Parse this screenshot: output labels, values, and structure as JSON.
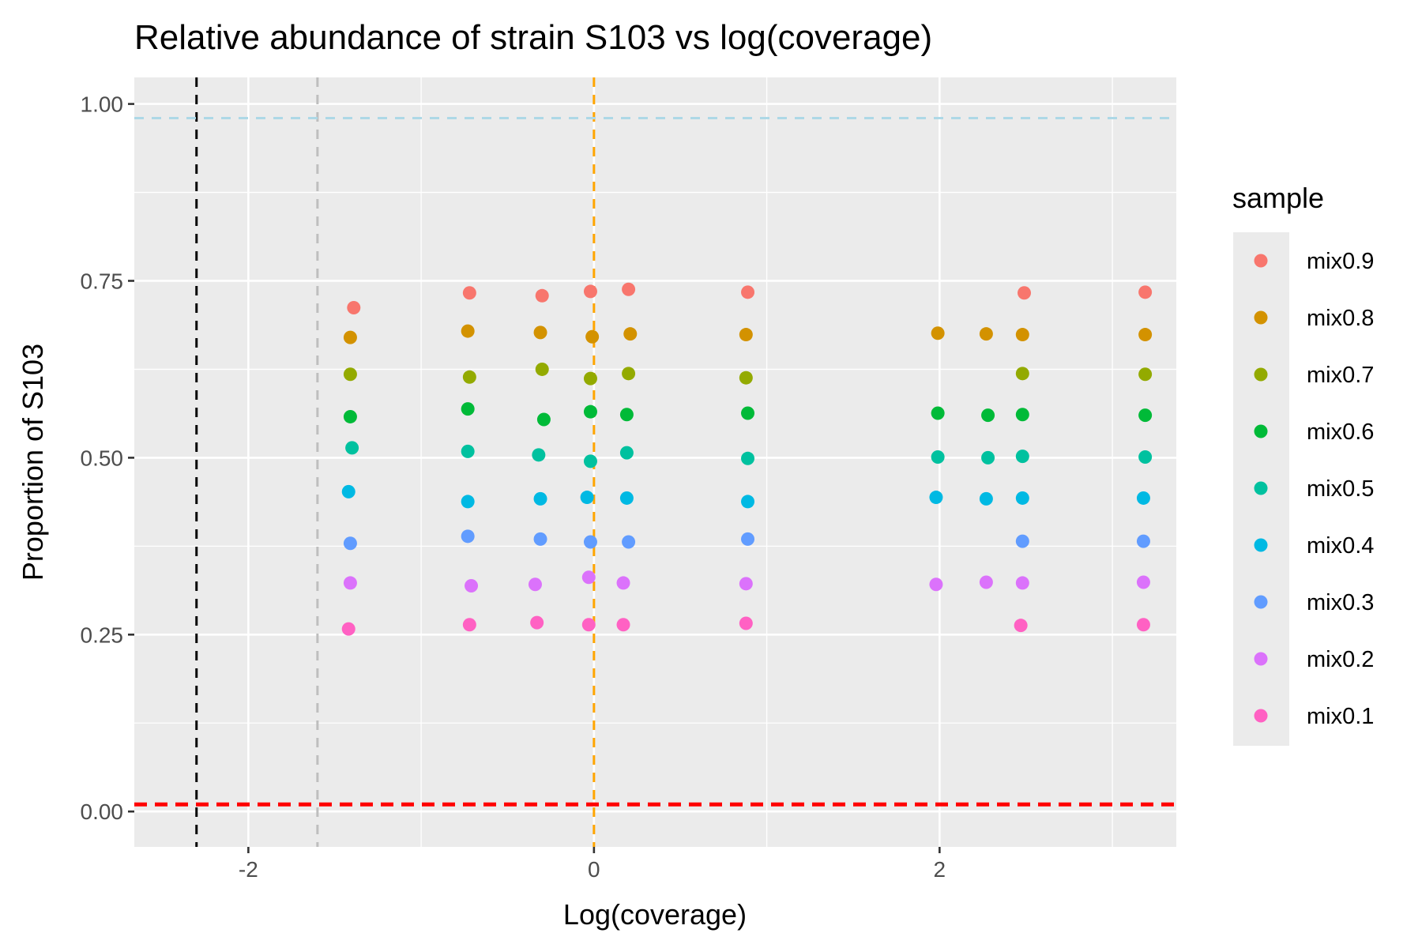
{
  "chart_data": {
    "type": "scatter",
    "title": "Relative abundance of strain S103 vs log(coverage)",
    "xlabel": "Log(coverage)",
    "ylabel": "Proportion of S103",
    "xlim": [
      -2.66,
      3.37
    ],
    "ylim": [
      -0.05,
      1.0375
    ],
    "x_ticks": [
      -2,
      0,
      2
    ],
    "x_tick_labels": [
      "-2",
      "0",
      "2"
    ],
    "y_ticks": [
      0,
      0.25,
      0.5,
      0.75,
      1.0
    ],
    "y_tick_labels": [
      "0.00",
      "0.25",
      "0.50",
      "0.75",
      "1.00"
    ],
    "x_minor_ticks": [
      -1,
      1,
      3
    ],
    "y_minor_ticks": [
      0.125,
      0.375,
      0.625,
      0.875
    ],
    "grid": true,
    "background": "#ebebeb",
    "legend": {
      "title": "sample",
      "position": "right",
      "entries": [
        "mix0.9",
        "mix0.8",
        "mix0.7",
        "mix0.6",
        "mix0.5",
        "mix0.4",
        "mix0.3",
        "mix0.2",
        "mix0.1"
      ]
    },
    "reference_lines": [
      {
        "orientation": "vertical",
        "value": -2.3,
        "color": "#000000",
        "style": "dashed"
      },
      {
        "orientation": "vertical",
        "value": -1.6,
        "color": "#bebebe",
        "style": "dashed"
      },
      {
        "orientation": "vertical",
        "value": 0.0,
        "color": "#ffa500",
        "style": "dashed"
      },
      {
        "orientation": "horizontal",
        "value": 0.98,
        "color": "#add8e6",
        "style": "dashed"
      },
      {
        "orientation": "horizontal",
        "value": 0.01,
        "color": "#ff0000",
        "style": "dashed"
      }
    ],
    "series": [
      {
        "name": "mix0.9",
        "color": "#F8766D",
        "points": [
          [
            -1.39,
            0.712
          ],
          [
            -0.72,
            0.733
          ],
          [
            -0.3,
            0.729
          ],
          [
            -0.02,
            0.735
          ],
          [
            0.2,
            0.738
          ],
          [
            0.89,
            0.734
          ],
          [
            2.49,
            0.733
          ],
          [
            3.19,
            0.734
          ]
        ]
      },
      {
        "name": "mix0.8",
        "color": "#D39200",
        "points": [
          [
            -1.41,
            0.67
          ],
          [
            -0.73,
            0.679
          ],
          [
            -0.31,
            0.677
          ],
          [
            -0.01,
            0.671
          ],
          [
            0.21,
            0.675
          ],
          [
            0.88,
            0.674
          ],
          [
            1.99,
            0.676
          ],
          [
            2.27,
            0.675
          ],
          [
            2.48,
            0.674
          ],
          [
            3.19,
            0.674
          ]
        ]
      },
      {
        "name": "mix0.7",
        "color": "#93AA00",
        "points": [
          [
            -1.41,
            0.618
          ],
          [
            -0.72,
            0.614
          ],
          [
            -0.3,
            0.625
          ],
          [
            -0.02,
            0.612
          ],
          [
            0.2,
            0.619
          ],
          [
            0.88,
            0.613
          ],
          [
            2.48,
            0.619
          ],
          [
            3.19,
            0.618
          ]
        ]
      },
      {
        "name": "mix0.6",
        "color": "#00BA38",
        "points": [
          [
            -1.41,
            0.558
          ],
          [
            -0.73,
            0.569
          ],
          [
            -0.29,
            0.554
          ],
          [
            -0.02,
            0.565
          ],
          [
            0.19,
            0.561
          ],
          [
            0.89,
            0.563
          ],
          [
            1.99,
            0.563
          ],
          [
            2.28,
            0.56
          ],
          [
            2.48,
            0.561
          ],
          [
            3.19,
            0.56
          ]
        ]
      },
      {
        "name": "mix0.5",
        "color": "#00C19F",
        "points": [
          [
            -1.4,
            0.514
          ],
          [
            -0.73,
            0.509
          ],
          [
            -0.32,
            0.504
          ],
          [
            -0.02,
            0.495
          ],
          [
            0.19,
            0.507
          ],
          [
            0.89,
            0.499
          ],
          [
            1.99,
            0.501
          ],
          [
            2.28,
            0.5
          ],
          [
            2.48,
            0.502
          ],
          [
            3.19,
            0.501
          ]
        ]
      },
      {
        "name": "mix0.4",
        "color": "#00B9E3",
        "points": [
          [
            -1.42,
            0.452
          ],
          [
            -0.73,
            0.438
          ],
          [
            -0.31,
            0.442
          ],
          [
            -0.04,
            0.444
          ],
          [
            0.19,
            0.443
          ],
          [
            0.89,
            0.438
          ],
          [
            1.98,
            0.444
          ],
          [
            2.27,
            0.442
          ],
          [
            2.48,
            0.443
          ],
          [
            3.18,
            0.443
          ]
        ]
      },
      {
        "name": "mix0.3",
        "color": "#619CFF",
        "points": [
          [
            -1.41,
            0.379
          ],
          [
            -0.73,
            0.389
          ],
          [
            -0.31,
            0.385
          ],
          [
            -0.02,
            0.381
          ],
          [
            0.2,
            0.381
          ],
          [
            0.89,
            0.385
          ],
          [
            2.48,
            0.382
          ],
          [
            3.18,
            0.382
          ]
        ]
      },
      {
        "name": "mix0.2",
        "color": "#DB72FB",
        "points": [
          [
            -1.41,
            0.323
          ],
          [
            -0.71,
            0.319
          ],
          [
            -0.34,
            0.321
          ],
          [
            -0.03,
            0.331
          ],
          [
            0.17,
            0.323
          ],
          [
            0.88,
            0.322
          ],
          [
            1.98,
            0.321
          ],
          [
            2.27,
            0.324
          ],
          [
            2.48,
            0.323
          ],
          [
            3.18,
            0.324
          ]
        ]
      },
      {
        "name": "mix0.1",
        "color": "#FF61C3",
        "points": [
          [
            -1.42,
            0.258
          ],
          [
            -0.72,
            0.264
          ],
          [
            -0.33,
            0.267
          ],
          [
            -0.03,
            0.264
          ],
          [
            0.17,
            0.264
          ],
          [
            0.88,
            0.266
          ],
          [
            2.47,
            0.263
          ],
          [
            3.18,
            0.264
          ]
        ]
      }
    ]
  }
}
